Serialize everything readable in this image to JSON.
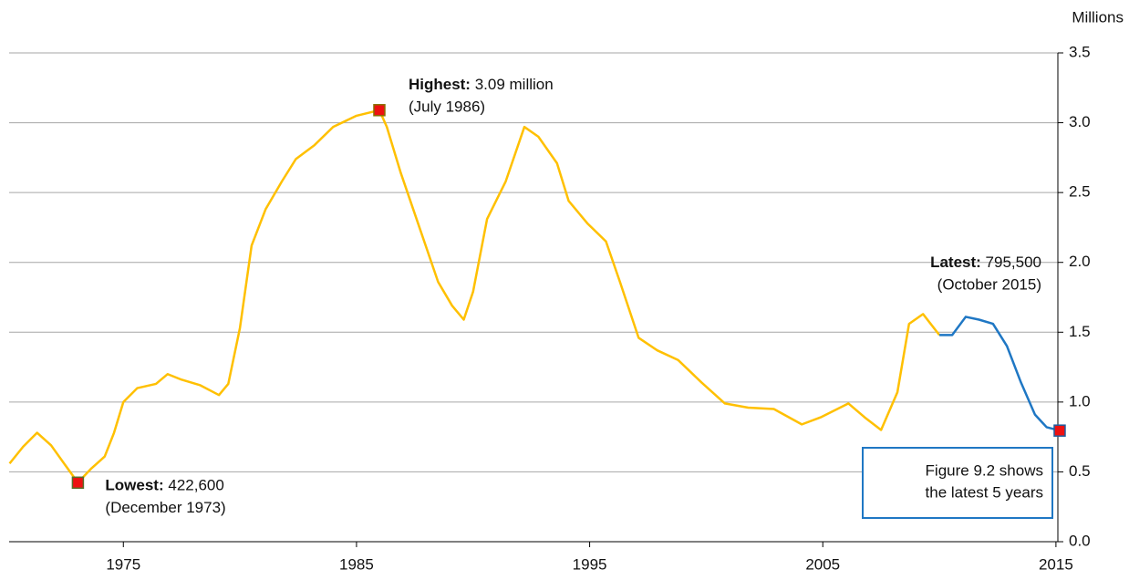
{
  "chart_data": {
    "type": "line",
    "y_label": "Millions",
    "xlim": [
      1970.1,
      2015.2
    ],
    "xticks": [
      1975,
      1985,
      1995,
      2005,
      2015
    ],
    "ylim": [
      0,
      3.5
    ],
    "yticks": [
      {
        "value": 0,
        "label": "0.0"
      },
      0.5,
      {
        "value": 1,
        "label": "1.0"
      },
      1.5,
      {
        "value": 2,
        "label": "2.0"
      },
      2.5,
      {
        "value": 3,
        "label": "3.0"
      },
      3.5
    ],
    "grid": true,
    "series": [
      {
        "color": "#ffc000",
        "x": [
          1970.12,
          1970.7,
          1971.3,
          1971.9,
          1972.5,
          1973.05,
          1973.6,
          1974.2,
          1974.6,
          1975.0,
          1975.6,
          1976.4,
          1976.9,
          1977.5,
          1978.3,
          1979.1,
          1979.5,
          1980.0,
          1980.5,
          1981.1,
          1981.8,
          1982.4,
          1983.2,
          1984.0,
          1985.0,
          1985.98,
          1986.3,
          1986.9,
          1987.7,
          1988.5,
          1989.1,
          1989.6,
          1990.0,
          1990.6,
          1991.4,
          1992.2,
          1992.8,
          1993.6,
          1994.1,
          1994.9,
          1995.7,
          1996.3,
          1997.1,
          1997.9,
          1998.8,
          1999.8,
          2000.8,
          2001.8,
          2002.9,
          2004.1,
          2004.9,
          2006.1,
          2006.8,
          2007.5,
          2008.2,
          2008.7,
          2009.3,
          2010.0
        ],
        "values": [
          0.56,
          0.68,
          0.78,
          0.69,
          0.55,
          0.4226,
          0.52,
          0.61,
          0.78,
          1.0,
          1.1,
          1.13,
          1.2,
          1.16,
          1.12,
          1.05,
          1.13,
          1.53,
          2.12,
          2.38,
          2.58,
          2.74,
          2.84,
          2.97,
          3.05,
          3.09,
          2.97,
          2.64,
          2.25,
          1.86,
          1.69,
          1.59,
          1.79,
          2.31,
          2.58,
          2.97,
          2.9,
          2.71,
          2.44,
          2.28,
          2.15,
          1.86,
          1.46,
          1.37,
          1.3,
          1.14,
          0.99,
          0.96,
          0.95,
          0.84,
          0.89,
          0.99,
          0.89,
          0.8,
          1.07,
          1.56,
          1.63,
          1.48
        ]
      },
      {
        "color": "#1f77c4",
        "x": [
          2010.0,
          2010.55,
          2011.13,
          2011.7,
          2012.3,
          2012.9,
          2013.5,
          2014.1,
          2014.6,
          2015.16
        ],
        "values": [
          1.48,
          1.48,
          1.61,
          1.59,
          1.56,
          1.4,
          1.14,
          0.91,
          0.82,
          0.7955
        ]
      }
    ],
    "annotations": [
      {
        "label": "Highest:",
        "value": "3.09 million",
        "date": "(July 1986)"
      },
      {
        "label": "Lowest:",
        "value": "422,600",
        "date": "(December 1973)"
      },
      {
        "label": "Latest:",
        "value": "795,500",
        "date": "(October 2015)"
      }
    ],
    "note": [
      "Figure 9.2 shows",
      "the latest 5 years"
    ]
  }
}
